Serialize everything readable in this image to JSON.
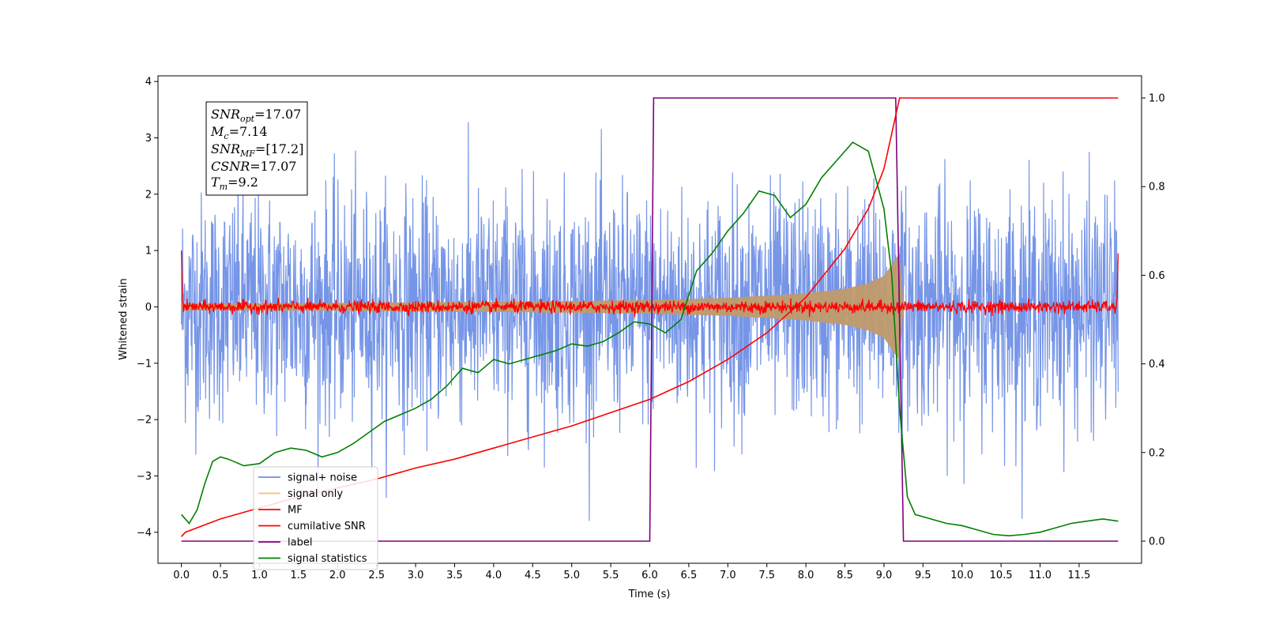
{
  "chart_data": {
    "type": "line",
    "title": "",
    "xlabel": "Time (s)",
    "ylabel": "Whitened strain",
    "xlim": [
      -0.3,
      12.3
    ],
    "ylim": [
      -4.55,
      4.1
    ],
    "y2lim": [
      -0.05,
      1.05
    ],
    "xticks": [
      "0.0",
      "0.5",
      "1.0",
      "1.5",
      "2.0",
      "2.5",
      "3.0",
      "3.5",
      "4.0",
      "4.5",
      "5.0",
      "5.5",
      "6.0",
      "6.5",
      "7.0",
      "7.5",
      "8.0",
      "8.5",
      "9.0",
      "9.5",
      "10.0",
      "10.5",
      "11.0",
      "11.5"
    ],
    "yticks": [
      "4",
      "3",
      "2",
      "1",
      "0",
      "−1",
      "−2",
      "−3",
      "−4"
    ],
    "y2ticks": [
      "0.0",
      "0.2",
      "0.4",
      "0.6",
      "0.8",
      "1.0"
    ],
    "legend_position": "lower-left",
    "annotation": {
      "snr_opt": "=17.07",
      "mc": "=7.14",
      "snr_mf": "=[17.2]",
      "csnr": "=17.07",
      "tm": "=9.2"
    },
    "series": [
      {
        "name": "signal+ noise",
        "color": "#6f8fe6",
        "axis": "left",
        "style": "noise",
        "x_range": [
          0.0,
          12.0
        ],
        "amplitude": 3.8
      },
      {
        "name": "signal only",
        "color": "#f5c26b",
        "axis": "left",
        "style": "chirp",
        "envelope": [
          [
            0.0,
            0.06
          ],
          [
            2.0,
            0.07
          ],
          [
            4.0,
            0.09
          ],
          [
            6.0,
            0.12
          ],
          [
            7.0,
            0.16
          ],
          [
            8.0,
            0.24
          ],
          [
            8.5,
            0.32
          ],
          [
            8.8,
            0.42
          ],
          [
            9.0,
            0.55
          ],
          [
            9.1,
            0.75
          ],
          [
            9.2,
            0.95
          ],
          [
            9.25,
            0.0
          ],
          [
            12.0,
            0.0
          ]
        ]
      },
      {
        "name": "MF",
        "color": "#ff0000",
        "axis": "left",
        "style": "mf-noise",
        "x_range": [
          0.0,
          12.0
        ],
        "amplitude": 0.12
      },
      {
        "name": "cumilative SNR",
        "color": "#ff0000",
        "axis": "right",
        "style": "line",
        "x": [
          0.0,
          0.05,
          0.5,
          1.0,
          1.5,
          2.0,
          2.5,
          3.0,
          3.5,
          4.0,
          4.5,
          5.0,
          5.5,
          6.0,
          6.5,
          7.0,
          7.5,
          8.0,
          8.5,
          8.8,
          9.0,
          9.1,
          9.2,
          12.0
        ],
        "values": [
          0.01,
          0.02,
          0.05,
          0.075,
          0.1,
          0.12,
          0.14,
          0.165,
          0.185,
          0.21,
          0.235,
          0.26,
          0.29,
          0.32,
          0.36,
          0.41,
          0.47,
          0.55,
          0.66,
          0.75,
          0.84,
          0.92,
          1.0,
          1.0
        ]
      },
      {
        "name": "label",
        "color": "#800080",
        "axis": "right",
        "style": "line",
        "x": [
          0.0,
          6.0,
          6.05,
          9.15,
          9.25,
          12.0
        ],
        "values": [
          0.0,
          0.0,
          1.0,
          1.0,
          0.0,
          0.0
        ]
      },
      {
        "name": "signal statistics",
        "color": "#008000",
        "axis": "right",
        "style": "line",
        "x": [
          0.0,
          0.1,
          0.2,
          0.3,
          0.4,
          0.5,
          0.6,
          0.8,
          1.0,
          1.2,
          1.4,
          1.6,
          1.8,
          2.0,
          2.2,
          2.4,
          2.6,
          2.8,
          3.0,
          3.2,
          3.4,
          3.6,
          3.8,
          4.0,
          4.2,
          4.4,
          4.6,
          4.8,
          5.0,
          5.2,
          5.4,
          5.6,
          5.8,
          6.0,
          6.2,
          6.4,
          6.6,
          6.8,
          7.0,
          7.2,
          7.4,
          7.6,
          7.8,
          8.0,
          8.2,
          8.4,
          8.6,
          8.8,
          9.0,
          9.1,
          9.2,
          9.3,
          9.4,
          9.6,
          9.8,
          10.0,
          10.2,
          10.4,
          10.6,
          10.8,
          11.0,
          11.2,
          11.4,
          11.6,
          11.8,
          12.0
        ],
        "values": [
          0.06,
          0.04,
          0.07,
          0.13,
          0.18,
          0.19,
          0.185,
          0.17,
          0.175,
          0.2,
          0.21,
          0.205,
          0.19,
          0.2,
          0.22,
          0.245,
          0.27,
          0.285,
          0.3,
          0.32,
          0.35,
          0.39,
          0.38,
          0.41,
          0.4,
          0.41,
          0.42,
          0.43,
          0.445,
          0.44,
          0.45,
          0.47,
          0.495,
          0.49,
          0.47,
          0.5,
          0.61,
          0.65,
          0.7,
          0.74,
          0.79,
          0.78,
          0.73,
          0.76,
          0.82,
          0.86,
          0.9,
          0.88,
          0.75,
          0.6,
          0.3,
          0.1,
          0.06,
          0.05,
          0.04,
          0.035,
          0.025,
          0.015,
          0.012,
          0.015,
          0.02,
          0.03,
          0.04,
          0.045,
          0.05,
          0.045
        ]
      }
    ]
  }
}
